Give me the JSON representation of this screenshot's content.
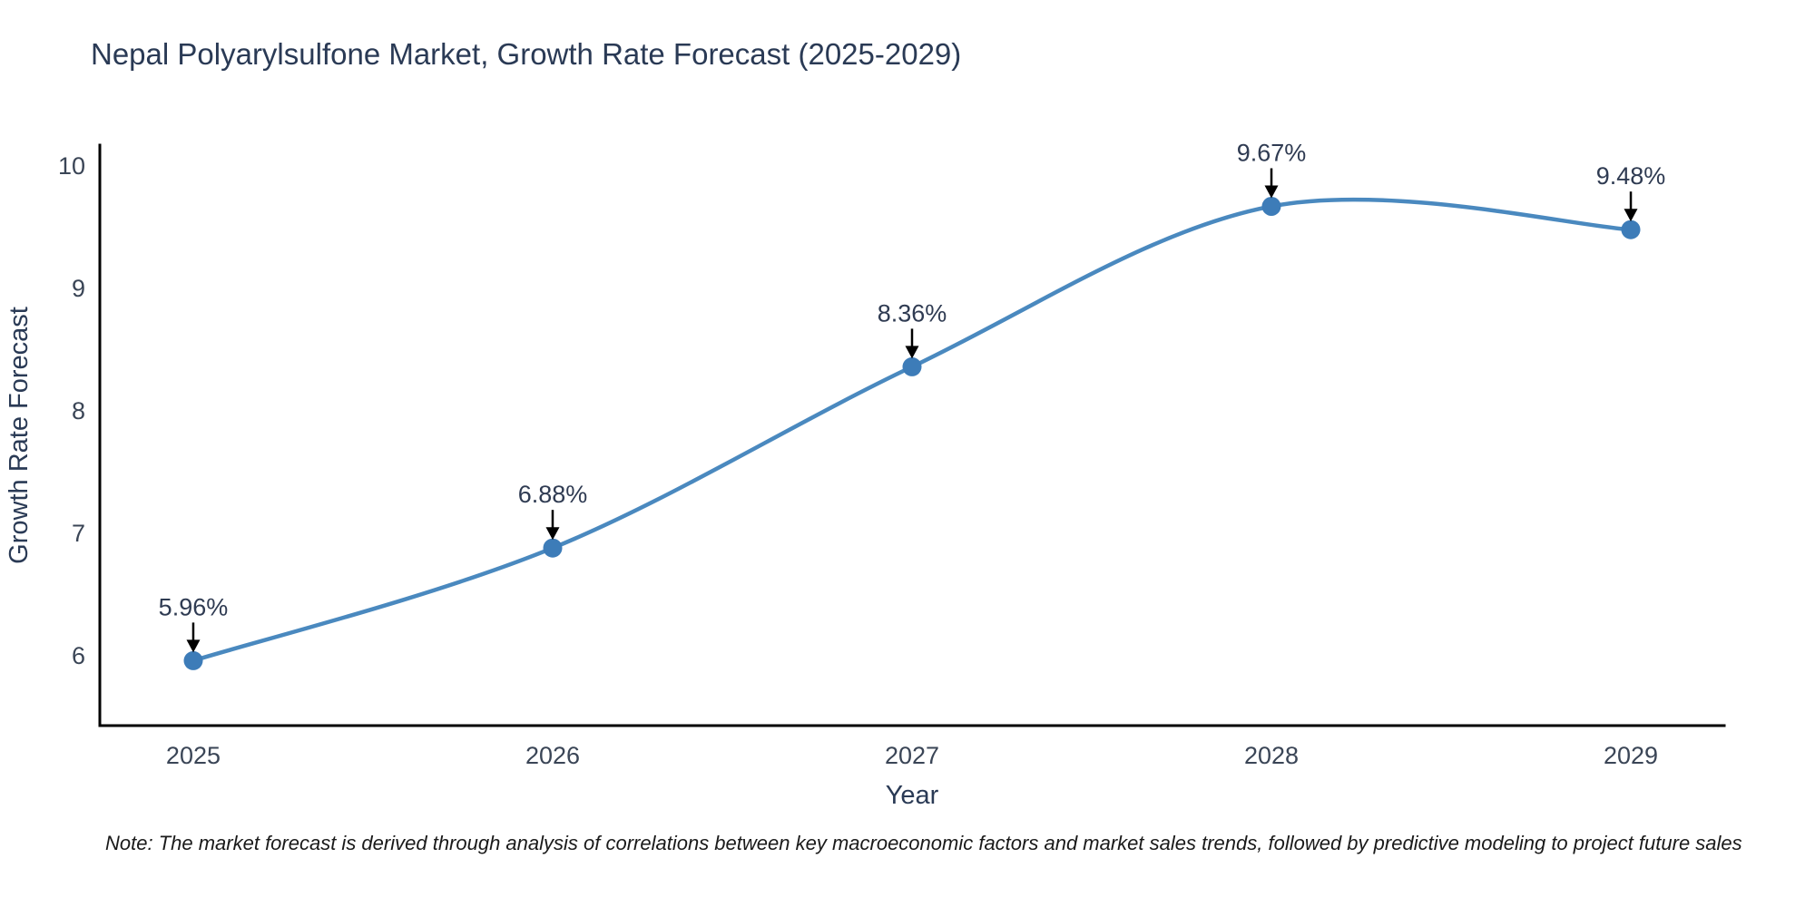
{
  "chart_data": {
    "type": "line",
    "title": "Nepal Polyarylsulfone Market, Growth Rate Forecast (2025-2029)",
    "xlabel": "Year",
    "ylabel": "Growth Rate Forecast",
    "x": [
      2025,
      2026,
      2027,
      2028,
      2029
    ],
    "y": [
      5.96,
      6.88,
      8.36,
      9.67,
      9.48
    ],
    "point_labels": [
      "5.96%",
      "6.88%",
      "8.36%",
      "9.67%",
      "9.48%"
    ],
    "x_tick_labels": [
      "2025",
      "2026",
      "2027",
      "2028",
      "2029"
    ],
    "y_tick_values": [
      6,
      7,
      8,
      9,
      10
    ],
    "y_tick_labels": [
      "6",
      "7",
      "8",
      "9",
      "10"
    ],
    "xlim": [
      2024.74,
      2029.26
    ],
    "ylim": [
      5.43,
      10.17
    ],
    "grid": false,
    "legend": "none",
    "curve": "smooth-spline",
    "annotation_style": "value label above point with downward black arrow",
    "colors": {
      "line": "#4a89bf",
      "marker": "#3d7cb8",
      "arrow": "#000000",
      "title": "#2a3a55",
      "tick": "#3a4556",
      "spine": "#000000"
    }
  },
  "footnote": "Note: The market forecast is derived through analysis of correlations between key macroeconomic factors and market sales trends, followed by predictive modeling to project future sales"
}
